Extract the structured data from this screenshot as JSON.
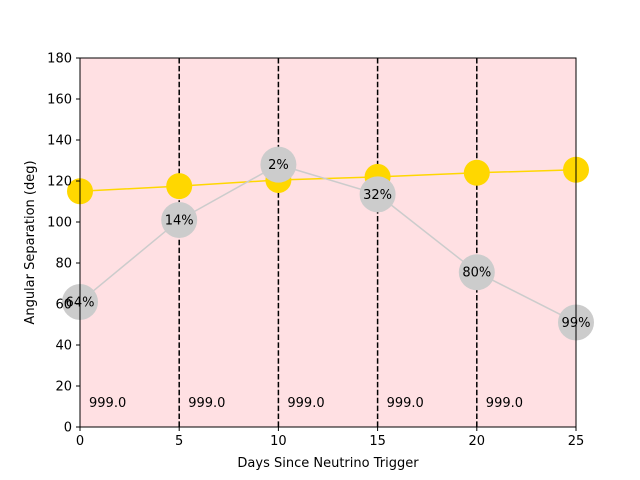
{
  "chart_data": {
    "type": "line",
    "title": "",
    "xlabel": "Days Since Neutrino Trigger",
    "ylabel": "Angular Separation (deg)",
    "xlim": [
      0,
      25
    ],
    "ylim": [
      0,
      180
    ],
    "x_ticks": [
      0,
      5,
      10,
      15,
      20,
      25
    ],
    "y_ticks": [
      0,
      20,
      40,
      60,
      80,
      100,
      120,
      140,
      160,
      180
    ],
    "background_color": "#ffe0e3",
    "grid": false,
    "legend": "none",
    "series": [
      {
        "color": "#ffd700",
        "x": [
          0,
          5,
          10,
          15,
          20,
          25
        ],
        "y": [
          115,
          117.5,
          120.5,
          122,
          124,
          125.5
        ]
      },
      {
        "color": "#cccccc",
        "x": [
          0,
          5,
          10,
          15,
          20,
          25
        ],
        "y": [
          61,
          101,
          128,
          113.5,
          75.5,
          51
        ],
        "point_labels": [
          "64%",
          "14%",
          "2%",
          "32%",
          "80%",
          "99%"
        ]
      }
    ],
    "vertical_lines": {
      "x": [
        5,
        10,
        15,
        20
      ],
      "style": "dashed",
      "color": "#000000"
    },
    "annotations": [
      {
        "x": 0,
        "text": "999.0"
      },
      {
        "x": 5,
        "text": "999.0"
      },
      {
        "x": 10,
        "text": "999.0"
      },
      {
        "x": 15,
        "text": "999.0"
      },
      {
        "x": 20,
        "text": "999.0"
      }
    ]
  }
}
